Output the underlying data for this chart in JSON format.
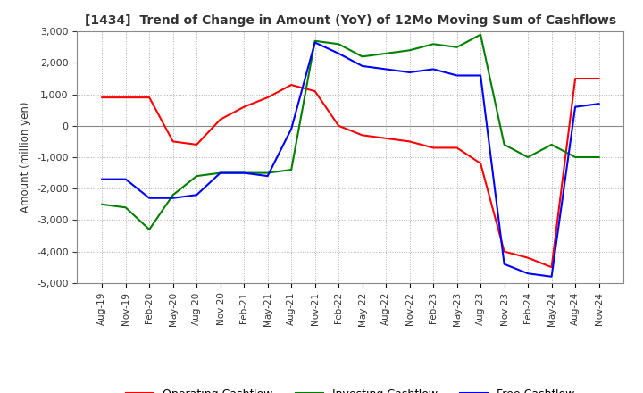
{
  "title": "[1434]  Trend of Change in Amount (YoY) of 12Mo Moving Sum of Cashflows",
  "ylabel": "Amount (million yen)",
  "ylim": [
    -5000,
    3000
  ],
  "yticks": [
    -5000,
    -4000,
    -3000,
    -2000,
    -1000,
    0,
    1000,
    2000,
    3000
  ],
  "x_labels": [
    "Aug-19",
    "Nov-19",
    "Feb-20",
    "May-20",
    "Aug-20",
    "Nov-20",
    "Feb-21",
    "May-21",
    "Aug-21",
    "Nov-21",
    "Feb-22",
    "May-22",
    "Aug-22",
    "Nov-22",
    "Feb-23",
    "May-23",
    "Aug-23",
    "Nov-23",
    "Feb-24",
    "May-24",
    "Aug-24",
    "Nov-24"
  ],
  "operating": [
    900,
    900,
    900,
    -500,
    -600,
    200,
    600,
    900,
    1300,
    1100,
    0,
    -300,
    -400,
    -500,
    -700,
    -700,
    -1200,
    -4000,
    -4200,
    -4500,
    1500,
    1500
  ],
  "investing": [
    -2500,
    -2600,
    -3300,
    -2200,
    -1600,
    -1500,
    -1500,
    -1500,
    -1400,
    2700,
    2600,
    2200,
    2300,
    2400,
    2600,
    2500,
    2900,
    -600,
    -1000,
    -600,
    -1000,
    -1000
  ],
  "free": [
    -1700,
    -1700,
    -2300,
    -2300,
    -2200,
    -1500,
    -1500,
    -1600,
    -100,
    2650,
    2300,
    1900,
    1800,
    1700,
    1800,
    1600,
    1600,
    -4400,
    -4700,
    -4800,
    600,
    700
  ],
  "operating_color": "#ff0000",
  "investing_color": "#008000",
  "free_color": "#0000ff",
  "background_color": "#ffffff",
  "grid_color": "#b0b0b0"
}
